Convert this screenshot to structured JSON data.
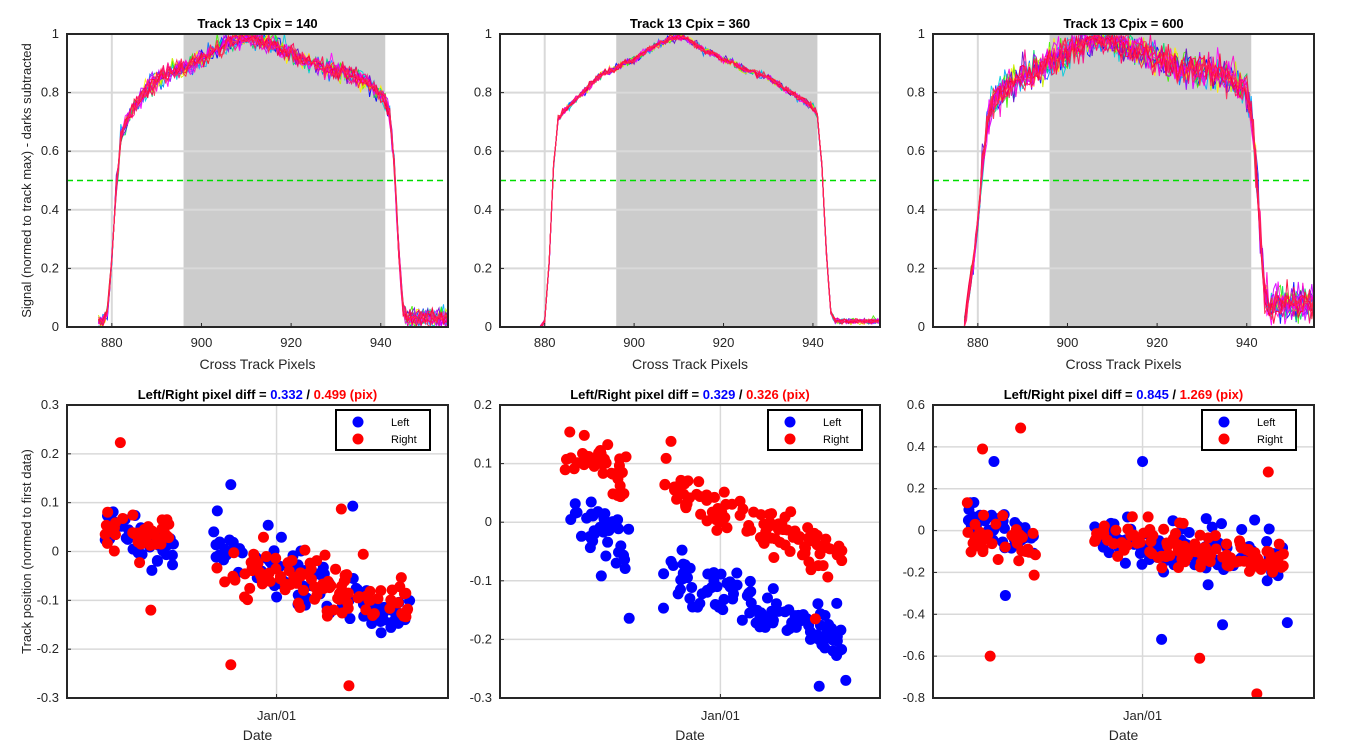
{
  "colors": {
    "shade": "#cccccc",
    "threshold": "#00dd00",
    "left": "#0000ff",
    "right": "#ff0000",
    "grid": "#d9d9d9",
    "axis": "#262626"
  },
  "chart_data": [
    {
      "type": "line",
      "title": "Track 13 Cpix = 140",
      "xlabel": "Cross Track Pixels",
      "ylabel": "Signal (normed to track max) - darks subtracted",
      "xlim": [
        870,
        955
      ],
      "ylim": [
        0,
        1
      ],
      "xticks": [
        880,
        900,
        920,
        940
      ],
      "yticks": [
        0,
        0.2,
        0.4,
        0.6,
        0.8,
        1
      ],
      "vline": 880,
      "shaded_region": [
        896,
        941
      ],
      "threshold": 0.5,
      "profile": {
        "x": [
          877,
          878,
          879,
          880,
          881,
          882,
          883,
          884,
          886,
          888,
          890,
          892,
          894,
          896,
          898,
          900,
          902,
          904,
          906,
          908,
          910,
          912,
          914,
          916,
          918,
          920,
          922,
          924,
          926,
          928,
          930,
          932,
          934,
          936,
          938,
          940,
          941,
          942,
          943,
          944,
          945,
          946,
          948,
          950,
          952,
          954,
          955
        ],
        "y": [
          0.02,
          0.02,
          0.05,
          0.22,
          0.48,
          0.64,
          0.69,
          0.72,
          0.77,
          0.81,
          0.84,
          0.86,
          0.87,
          0.88,
          0.89,
          0.91,
          0.93,
          0.95,
          0.97,
          0.98,
          0.99,
          0.98,
          0.97,
          0.96,
          0.94,
          0.93,
          0.91,
          0.9,
          0.89,
          0.88,
          0.87,
          0.86,
          0.85,
          0.84,
          0.82,
          0.79,
          0.77,
          0.72,
          0.55,
          0.25,
          0.06,
          0.03,
          0.03,
          0.03,
          0.03,
          0.03,
          0.03
        ]
      },
      "noise": 0.035,
      "right_tail": 0.04
    },
    {
      "type": "line",
      "title": "Track 13 Cpix = 360",
      "xlabel": "Cross Track Pixels",
      "ylabel": "",
      "xlim": [
        870,
        955
      ],
      "ylim": [
        0,
        1
      ],
      "xticks": [
        880,
        900,
        920,
        940
      ],
      "yticks": [
        0,
        0.2,
        0.4,
        0.6,
        0.8,
        1
      ],
      "vline": 880,
      "shaded_region": [
        896,
        941
      ],
      "threshold": 0.5,
      "profile": {
        "x": [
          879,
          880,
          881,
          882,
          883,
          884,
          886,
          888,
          890,
          892,
          894,
          896,
          898,
          900,
          902,
          904,
          906,
          908,
          910,
          912,
          914,
          916,
          918,
          920,
          922,
          924,
          926,
          928,
          930,
          932,
          934,
          936,
          938,
          940,
          941,
          942,
          943,
          944,
          945,
          946,
          948,
          950,
          952,
          955
        ],
        "y": [
          0.0,
          0.02,
          0.22,
          0.55,
          0.71,
          0.73,
          0.76,
          0.79,
          0.82,
          0.85,
          0.87,
          0.88,
          0.9,
          0.91,
          0.93,
          0.95,
          0.97,
          0.98,
          0.99,
          0.98,
          0.96,
          0.94,
          0.93,
          0.91,
          0.9,
          0.88,
          0.87,
          0.86,
          0.85,
          0.83,
          0.81,
          0.79,
          0.77,
          0.75,
          0.72,
          0.55,
          0.25,
          0.05,
          0.02,
          0.02,
          0.02,
          0.02,
          0.02,
          0.02
        ]
      },
      "noise": 0.012,
      "right_tail": 0.01
    },
    {
      "type": "line",
      "title": "Track 13 Cpix = 600",
      "xlabel": "Cross Track Pixels",
      "ylabel": "",
      "xlim": [
        870,
        955
      ],
      "ylim": [
        0,
        1
      ],
      "xticks": [
        880,
        900,
        920,
        940
      ],
      "yticks": [
        0,
        0.2,
        0.4,
        0.6,
        0.8,
        1
      ],
      "vline": 880,
      "shaded_region": [
        896,
        941
      ],
      "threshold": 0.5,
      "profile": {
        "x": [
          877,
          878,
          879,
          880,
          881,
          882,
          883,
          884,
          886,
          888,
          890,
          892,
          894,
          896,
          898,
          900,
          902,
          904,
          906,
          908,
          910,
          912,
          914,
          916,
          918,
          920,
          922,
          924,
          926,
          928,
          930,
          932,
          934,
          936,
          938,
          940,
          941,
          942,
          943,
          944,
          945,
          946,
          948,
          950,
          952,
          955
        ],
        "y": [
          0.0,
          0.12,
          0.2,
          0.35,
          0.55,
          0.68,
          0.74,
          0.77,
          0.8,
          0.82,
          0.85,
          0.86,
          0.87,
          0.89,
          0.91,
          0.92,
          0.94,
          0.96,
          0.98,
          0.99,
          0.97,
          0.95,
          0.94,
          0.93,
          0.92,
          0.9,
          0.89,
          0.88,
          0.87,
          0.86,
          0.86,
          0.85,
          0.85,
          0.84,
          0.82,
          0.78,
          0.72,
          0.55,
          0.3,
          0.12,
          0.06,
          0.08,
          0.08,
          0.08,
          0.08,
          0.08
        ]
      },
      "noise": 0.06,
      "right_tail": 0.06
    },
    {
      "type": "scatter",
      "title": "Left/Right pixel diff = ",
      "title_left_value": "0.332",
      "title_separator": " / ",
      "title_right_value": "0.499 (pix)",
      "xlabel": "Date",
      "ylabel": "Track position (normed to first data)",
      "xlim": [
        0,
        100
      ],
      "ylim": [
        -0.3,
        0.3
      ],
      "xtick_label": "Jan/01",
      "xtick_position": 55,
      "yticks": [
        -0.3,
        -0.2,
        -0.1,
        0,
        0.1,
        0.2,
        0.3
      ],
      "legend": [
        "Left",
        "Right"
      ],
      "legend_location": "top-right",
      "series": [
        {
          "name": "Left",
          "clusters": [
            {
              "x0": 10,
              "x1": 28,
              "y0": 0.06,
              "y1": 0.0,
              "spread": 0.04,
              "n": 38,
              "seed": 11
            },
            {
              "x0": 38,
              "x1": 90,
              "y0": 0.02,
              "y1": -0.15,
              "spread": 0.045,
              "n": 95,
              "seed": 12
            }
          ],
          "points": [
            {
              "x": 43,
              "y": 0.137
            },
            {
              "x": 75,
              "y": 0.093
            }
          ]
        },
        {
          "name": "Right",
          "clusters": [
            {
              "x0": 10,
              "x1": 28,
              "y0": 0.05,
              "y1": 0.02,
              "spread": 0.045,
              "n": 35,
              "seed": 13
            },
            {
              "x0": 38,
              "x1": 90,
              "y0": -0.01,
              "y1": -0.12,
              "spread": 0.05,
              "n": 100,
              "seed": 14
            }
          ],
          "points": [
            {
              "x": 14,
              "y": 0.223
            },
            {
              "x": 43,
              "y": -0.232
            },
            {
              "x": 74,
              "y": -0.275
            },
            {
              "x": 72,
              "y": 0.087
            },
            {
              "x": 22,
              "y": -0.12
            }
          ]
        }
      ]
    },
    {
      "type": "scatter",
      "title": "Left/Right pixel diff = ",
      "title_left_value": "0.329",
      "title_separator": " / ",
      "title_right_value": "0.326 (pix)",
      "xlabel": "Date",
      "ylabel": "",
      "xlim": [
        0,
        100
      ],
      "ylim": [
        -0.3,
        0.2
      ],
      "xtick_label": "Jan/01",
      "xtick_position": 58,
      "yticks": [
        -0.3,
        -0.2,
        -0.1,
        0,
        0.1,
        0.2
      ],
      "legend": [
        "Left",
        "Right"
      ],
      "legend_location": "top-right",
      "series": [
        {
          "name": "Left",
          "clusters": [
            {
              "x0": 17,
              "x1": 34,
              "y0": 0.03,
              "y1": -0.06,
              "spread": 0.045,
              "n": 40,
              "seed": 21
            },
            {
              "x0": 43,
              "x1": 90,
              "y0": -0.08,
              "y1": -0.2,
              "spread": 0.04,
              "n": 110,
              "seed": 22
            }
          ],
          "points": [
            {
              "x": 34,
              "y": -0.164
            },
            {
              "x": 84,
              "y": -0.28
            },
            {
              "x": 91,
              "y": -0.27
            }
          ]
        },
        {
          "name": "Right",
          "clusters": [
            {
              "x0": 17,
              "x1": 34,
              "y0": 0.12,
              "y1": 0.07,
              "spread": 0.035,
              "n": 40,
              "seed": 23
            },
            {
              "x0": 43,
              "x1": 90,
              "y0": 0.06,
              "y1": -0.06,
              "spread": 0.035,
              "n": 100,
              "seed": 24
            }
          ],
          "points": [
            {
              "x": 45,
              "y": 0.138
            },
            {
              "x": 83,
              "y": -0.165
            }
          ]
        }
      ]
    },
    {
      "type": "scatter",
      "title": "Left/Right pixel diff = ",
      "title_left_value": "0.845",
      "title_separator": " / ",
      "title_right_value": "1.269 (pix)",
      "xlabel": "Date",
      "ylabel": "",
      "xlim": [
        0,
        100
      ],
      "ylim": [
        -0.8,
        0.6
      ],
      "xtick_label": "Jan/01",
      "xtick_position": 55,
      "yticks": [
        -0.8,
        -0.6,
        -0.4,
        -0.2,
        0,
        0.2,
        0.4,
        0.6
      ],
      "legend": [
        "Left",
        "Right"
      ],
      "legend_location": "top-right",
      "series": [
        {
          "name": "Left",
          "clusters": [
            {
              "x0": 9,
              "x1": 27,
              "y0": 0.05,
              "y1": -0.05,
              "spread": 0.1,
              "n": 38,
              "seed": 31
            },
            {
              "x0": 42,
              "x1": 92,
              "y0": -0.02,
              "y1": -0.15,
              "spread": 0.1,
              "n": 100,
              "seed": 32
            }
          ],
          "points": [
            {
              "x": 16,
              "y": 0.33
            },
            {
              "x": 19,
              "y": -0.31
            },
            {
              "x": 60,
              "y": -0.52
            },
            {
              "x": 76,
              "y": -0.45
            },
            {
              "x": 93,
              "y": -0.44
            },
            {
              "x": 55,
              "y": 0.33
            }
          ]
        },
        {
          "name": "Right",
          "clusters": [
            {
              "x0": 9,
              "x1": 27,
              "y0": 0.0,
              "y1": -0.1,
              "spread": 0.09,
              "n": 35,
              "seed": 33
            },
            {
              "x0": 42,
              "x1": 92,
              "y0": -0.03,
              "y1": -0.15,
              "spread": 0.08,
              "n": 110,
              "seed": 34
            }
          ],
          "points": [
            {
              "x": 13,
              "y": 0.39
            },
            {
              "x": 23,
              "y": 0.49
            },
            {
              "x": 15,
              "y": -0.6
            },
            {
              "x": 70,
              "y": -0.61
            },
            {
              "x": 85,
              "y": -0.78
            },
            {
              "x": 88,
              "y": 0.28
            }
          ]
        }
      ]
    }
  ]
}
